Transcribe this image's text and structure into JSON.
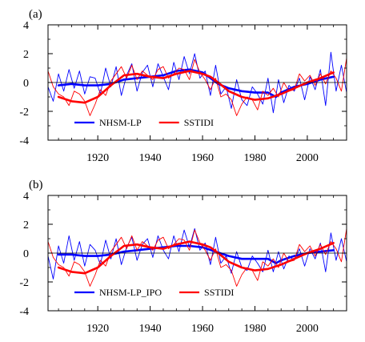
{
  "chart_data": [
    {
      "type": "line",
      "panel_label": "(a)",
      "xlim": [
        1901,
        2015
      ],
      "ylim": [
        -4,
        4
      ],
      "x_ticks": [
        1920,
        1940,
        1960,
        1980,
        2000
      ],
      "x_tick_labels": [
        "1920",
        "1940",
        "1960",
        "1980",
        "2000"
      ],
      "y_ticks": [
        -4,
        -2,
        0,
        2,
        4
      ],
      "y_tick_labels": [
        "-4",
        "-2",
        "0",
        "2",
        "4"
      ],
      "zero_line": true,
      "grid": false,
      "legend_position": "bottom-left",
      "series": [
        {
          "name": "NHSM-LP",
          "color": "#0000ff",
          "width": "thin",
          "x": [
            1901,
            1903,
            1905,
            1907,
            1909,
            1911,
            1913,
            1915,
            1917,
            1919,
            1921,
            1923,
            1925,
            1927,
            1929,
            1931,
            1933,
            1935,
            1937,
            1939,
            1941,
            1943,
            1945,
            1947,
            1949,
            1951,
            1953,
            1955,
            1957,
            1959,
            1961,
            1963,
            1965,
            1967,
            1969,
            1971,
            1973,
            1975,
            1977,
            1979,
            1981,
            1983,
            1985,
            1987,
            1989,
            1991,
            1993,
            1995,
            1997,
            1999,
            2001,
            2003,
            2005,
            2007,
            2009,
            2011,
            2013,
            2015
          ],
          "y": [
            -0.3,
            -1.3,
            0.6,
            -0.6,
            0.9,
            -0.4,
            0.8,
            -0.8,
            0.4,
            0.3,
            -0.8,
            1.0,
            -0.3,
            1.1,
            -0.9,
            0.5,
            1.3,
            -0.6,
            0.7,
            1.2,
            -0.3,
            1.3,
            0.4,
            -0.5,
            1.4,
            0.2,
            1.8,
            0.6,
            2.0,
            0.3,
            0.8,
            -0.9,
            1.2,
            -0.8,
            -0.3,
            -1.8,
            0.2,
            -1.2,
            -1.6,
            -0.3,
            -0.8,
            -1.5,
            0.3,
            -2.1,
            0.2,
            -1.4,
            -0.2,
            -0.6,
            0.3,
            -1.2,
            0.4,
            -0.5,
            0.9,
            -1.6,
            2.1,
            -0.6,
            1.2,
            -0.7
          ]
        },
        {
          "name": "",
          "color": "#0000ff",
          "width": "thick",
          "x": [
            1905,
            1910,
            1915,
            1920,
            1925,
            1930,
            1935,
            1940,
            1945,
            1950,
            1955,
            1960,
            1963,
            1966,
            1970,
            1975,
            1980,
            1985,
            1988,
            1990,
            1995,
            2000,
            2005,
            2010
          ],
          "y": [
            -0.2,
            -0.1,
            -0.2,
            -0.2,
            -0.1,
            0.2,
            0.3,
            0.4,
            0.5,
            0.8,
            0.9,
            0.7,
            0.3,
            -0.1,
            -0.4,
            -0.6,
            -0.7,
            -0.7,
            -1.0,
            -0.7,
            -0.3,
            -0.1,
            0.2,
            0.4
          ]
        },
        {
          "name": "SSTIDI",
          "color": "#ff0000",
          "width": "thin",
          "x": [
            1901,
            1903,
            1905,
            1907,
            1909,
            1911,
            1913,
            1915,
            1917,
            1919,
            1921,
            1923,
            1925,
            1927,
            1929,
            1931,
            1933,
            1935,
            1937,
            1939,
            1941,
            1943,
            1945,
            1947,
            1949,
            1951,
            1953,
            1955,
            1957,
            1959,
            1961,
            1963,
            1965,
            1967,
            1969,
            1971,
            1973,
            1975,
            1977,
            1979,
            1981,
            1983,
            1985,
            1987,
            1989,
            1991,
            1993,
            1995,
            1997,
            1999,
            2001,
            2003,
            2005,
            2007,
            2009,
            2011,
            2013,
            2015
          ],
          "y": [
            0.8,
            -0.3,
            -0.8,
            -1.0,
            -1.6,
            -0.6,
            -0.8,
            -1.3,
            -2.3,
            -1.5,
            -0.5,
            -0.9,
            0.1,
            0.6,
            1.1,
            0.3,
            1.2,
            0.2,
            0.8,
            0.5,
            0.2,
            0.9,
            1.1,
            0.3,
            0.6,
            1.0,
            0.9,
            0.2,
            1.6,
            0.7,
            0.2,
            -0.5,
            0.3,
            -1.0,
            -0.8,
            -1.2,
            -2.3,
            -1.5,
            -1.0,
            -1.2,
            -1.9,
            -0.6,
            -0.9,
            -0.4,
            -1.0,
            0.0,
            -0.6,
            -0.5,
            0.6,
            0.1,
            0.5,
            -0.2,
            0.6,
            -0.1,
            0.8,
            0.3,
            -0.6,
            1.7
          ]
        },
        {
          "name": "",
          "color": "#ff0000",
          "width": "thick",
          "x": [
            1905,
            1910,
            1915,
            1920,
            1925,
            1930,
            1935,
            1940,
            1945,
            1950,
            1955,
            1960,
            1963,
            1966,
            1970,
            1975,
            1980,
            1985,
            1990,
            1995,
            2000,
            2005,
            2010
          ],
          "y": [
            -1.0,
            -1.3,
            -1.4,
            -1.0,
            -0.2,
            0.5,
            0.6,
            0.4,
            0.3,
            0.6,
            0.8,
            0.6,
            0.4,
            0.0,
            -0.6,
            -1.0,
            -1.2,
            -1.1,
            -0.8,
            -0.4,
            0.0,
            0.3,
            0.7
          ]
        }
      ],
      "legend": [
        {
          "label": "NHSM-LP",
          "color": "#0000ff"
        },
        {
          "label": "SSTIDI",
          "color": "#ff0000"
        }
      ]
    },
    {
      "type": "line",
      "panel_label": "(b)",
      "xlim": [
        1901,
        2015
      ],
      "ylim": [
        -4,
        4
      ],
      "x_ticks": [
        1920,
        1940,
        1960,
        1980,
        2000
      ],
      "x_tick_labels": [
        "1920",
        "1940",
        "1960",
        "1980",
        "2000"
      ],
      "y_ticks": [
        -4,
        -2,
        0,
        2,
        4
      ],
      "y_tick_labels": [
        "-4",
        "-2",
        "0",
        "2",
        "4"
      ],
      "zero_line": true,
      "grid": false,
      "legend_position": "bottom-left",
      "series": [
        {
          "name": "NHSM-LP_IPO",
          "color": "#0000ff",
          "width": "thin",
          "x": [
            1901,
            1903,
            1905,
            1907,
            1909,
            1911,
            1913,
            1915,
            1917,
            1919,
            1921,
            1923,
            1925,
            1927,
            1929,
            1931,
            1933,
            1935,
            1937,
            1939,
            1941,
            1943,
            1945,
            1947,
            1949,
            1951,
            1953,
            1955,
            1957,
            1959,
            1961,
            1963,
            1965,
            1967,
            1969,
            1971,
            1973,
            1975,
            1977,
            1979,
            1981,
            1983,
            1985,
            1987,
            1989,
            1991,
            1993,
            1995,
            1997,
            1999,
            2001,
            2003,
            2005,
            2007,
            2009,
            2011,
            2013,
            2015
          ],
          "y": [
            -0.2,
            -1.8,
            0.5,
            -0.7,
            1.2,
            -0.5,
            0.8,
            -0.9,
            0.6,
            0.2,
            -0.8,
            0.9,
            -0.4,
            1.0,
            -0.8,
            0.4,
            1.1,
            -0.5,
            0.6,
            1.0,
            -0.3,
            1.2,
            0.2,
            -0.4,
            1.2,
            0.1,
            1.6,
            0.4,
            1.7,
            0.2,
            0.7,
            -0.8,
            1.1,
            -0.7,
            -0.2,
            -1.4,
            0.1,
            -1.0,
            -1.2,
            -0.2,
            -0.7,
            -1.3,
            0.2,
            -1.3,
            0.1,
            -1.1,
            -0.2,
            -0.5,
            0.3,
            -0.9,
            0.3,
            -0.4,
            0.7,
            -1.3,
            1.4,
            -0.5,
            1.0,
            -0.6
          ]
        },
        {
          "name": "",
          "color": "#0000ff",
          "width": "thick",
          "x": [
            1905,
            1910,
            1915,
            1920,
            1925,
            1930,
            1935,
            1940,
            1945,
            1950,
            1955,
            1960,
            1965,
            1970,
            1975,
            1980,
            1985,
            1988,
            1990,
            1995,
            2000,
            2005,
            2010
          ],
          "y": [
            -0.1,
            -0.1,
            -0.2,
            -0.2,
            -0.1,
            0.1,
            0.2,
            0.3,
            0.4,
            0.5,
            0.5,
            0.4,
            0.1,
            -0.2,
            -0.4,
            -0.4,
            -0.4,
            -0.7,
            -0.5,
            -0.2,
            0.0,
            0.1,
            0.2
          ]
        },
        {
          "name": "SSTIDI",
          "color": "#ff0000",
          "width": "thin",
          "x": [
            1901,
            1903,
            1905,
            1907,
            1909,
            1911,
            1913,
            1915,
            1917,
            1919,
            1921,
            1923,
            1925,
            1927,
            1929,
            1931,
            1933,
            1935,
            1937,
            1939,
            1941,
            1943,
            1945,
            1947,
            1949,
            1951,
            1953,
            1955,
            1957,
            1959,
            1961,
            1963,
            1965,
            1967,
            1969,
            1971,
            1973,
            1975,
            1977,
            1979,
            1981,
            1983,
            1985,
            1987,
            1989,
            1991,
            1993,
            1995,
            1997,
            1999,
            2001,
            2003,
            2005,
            2007,
            2009,
            2011,
            2013,
            2015
          ],
          "y": [
            0.8,
            -0.3,
            -0.8,
            -1.0,
            -1.6,
            -0.6,
            -0.8,
            -1.3,
            -2.3,
            -1.5,
            -0.5,
            -0.9,
            0.1,
            0.6,
            1.1,
            0.3,
            1.2,
            0.2,
            0.8,
            0.5,
            0.2,
            0.9,
            1.1,
            0.3,
            0.6,
            1.0,
            0.9,
            0.2,
            1.6,
            0.7,
            0.2,
            -0.5,
            0.3,
            -1.0,
            -0.8,
            -1.2,
            -2.3,
            -1.5,
            -1.0,
            -1.2,
            -1.9,
            -0.6,
            -0.9,
            -0.4,
            -1.0,
            0.0,
            -0.6,
            -0.5,
            0.6,
            0.1,
            0.5,
            -0.2,
            0.6,
            -0.1,
            0.8,
            0.3,
            -0.6,
            1.7
          ]
        },
        {
          "name": "",
          "color": "#ff0000",
          "width": "thick",
          "x": [
            1905,
            1910,
            1915,
            1920,
            1925,
            1930,
            1935,
            1940,
            1945,
            1950,
            1955,
            1960,
            1963,
            1966,
            1970,
            1975,
            1980,
            1985,
            1990,
            1995,
            2000,
            2005,
            2010
          ],
          "y": [
            -1.0,
            -1.3,
            -1.4,
            -1.0,
            -0.2,
            0.5,
            0.6,
            0.4,
            0.3,
            0.6,
            0.8,
            0.6,
            0.4,
            0.0,
            -0.6,
            -1.0,
            -1.2,
            -1.1,
            -0.8,
            -0.4,
            0.0,
            0.3,
            0.7
          ]
        }
      ],
      "legend": [
        {
          "label": "NHSM-LP_IPO",
          "color": "#0000ff"
        },
        {
          "label": "SSTIDI",
          "color": "#ff0000"
        }
      ]
    }
  ]
}
